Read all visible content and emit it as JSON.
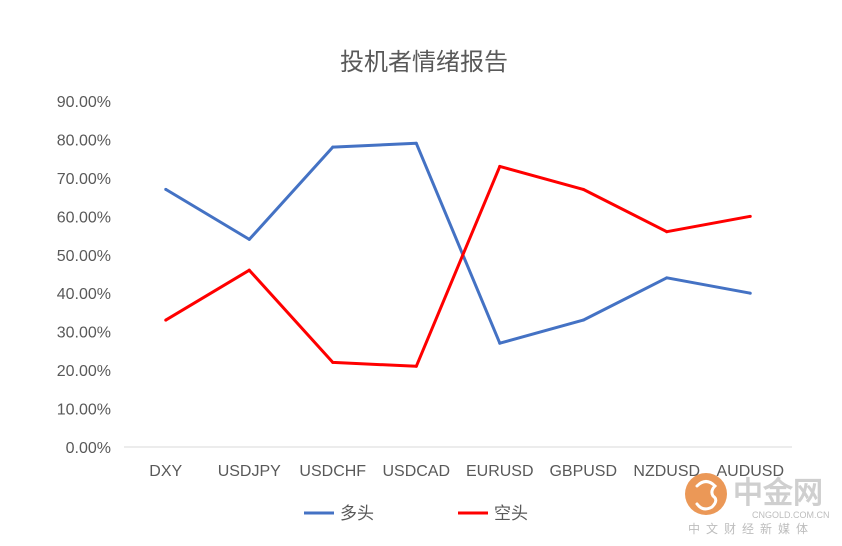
{
  "chart_data": {
    "type": "line",
    "title": "投机者情绪报告",
    "categories": [
      "DXY",
      "USDJPY",
      "USDCHF",
      "USDCAD",
      "EURUSD",
      "GBPUSD",
      "NZDUSD",
      "AUDUSD"
    ],
    "series": [
      {
        "name": "多头",
        "color": "#4472C4",
        "values": [
          0.67,
          0.54,
          0.78,
          0.79,
          0.27,
          0.33,
          0.44,
          0.4
        ]
      },
      {
        "name": "空头",
        "color": "#FF0000",
        "values": [
          0.33,
          0.46,
          0.22,
          0.21,
          0.73,
          0.67,
          0.56,
          0.6
        ]
      }
    ],
    "ylim": [
      0,
      0.9
    ],
    "yticks": [
      "0.00%",
      "10.00%",
      "20.00%",
      "30.00%",
      "40.00%",
      "50.00%",
      "60.00%",
      "70.00%",
      "80.00%",
      "90.00%"
    ],
    "grid": false,
    "legend": "bottom",
    "xlabel": "",
    "ylabel": ""
  },
  "watermark": {
    "name": "中金网",
    "site": "CNGOLD.COM.CN",
    "tagline": "中文财经新媒体",
    "color": "#E8863A"
  }
}
